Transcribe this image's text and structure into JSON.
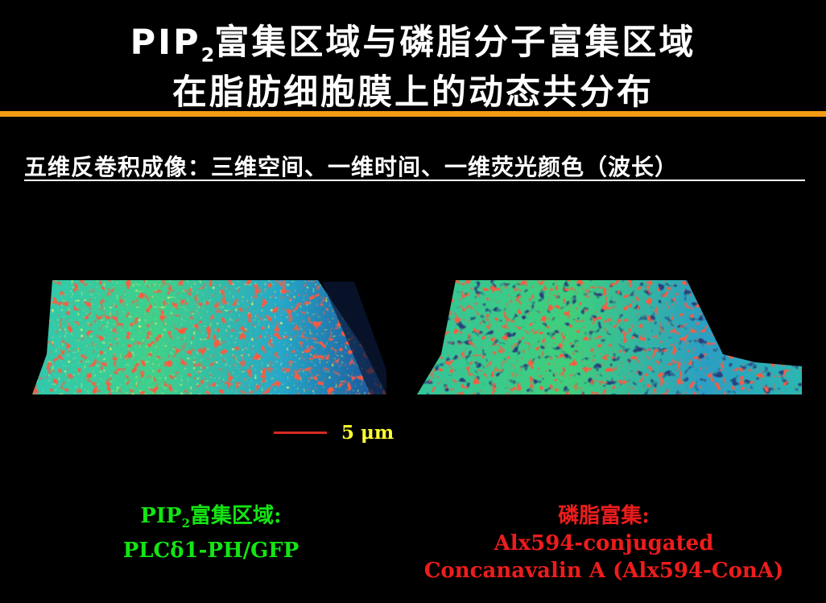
{
  "header": {
    "title_line1_prefix": "PIP",
    "title_line1_sub": "2",
    "title_line1_rest": "富集区域与磷脂分子富集区域",
    "title_line2": "在脂肪细胞膜上的动态共分布"
  },
  "subtitle": "五维反卷积成像：三维空间、一维时间、一维荧光颜色（波长）",
  "scale": {
    "label": "5 μm",
    "bar_color": "#d62b1f"
  },
  "captions": {
    "left": {
      "line1_prefix": "PIP",
      "line1_sub": "2",
      "line1_rest": "富集区域:",
      "line2": "PLCδ1-PH/GFP",
      "color": "#14e414"
    },
    "right": {
      "line1": "磷脂富集:",
      "line2": "Alx594-conjugated",
      "line3": "Concanavalin A (Alx594-ConA)",
      "color": "#ee1c1c"
    }
  },
  "colors": {
    "accent_rule": "#f39b12",
    "background": "#000000"
  },
  "images": {
    "left": "fluorescence-heatmap-left",
    "right": "fluorescence-heatmap-right"
  }
}
